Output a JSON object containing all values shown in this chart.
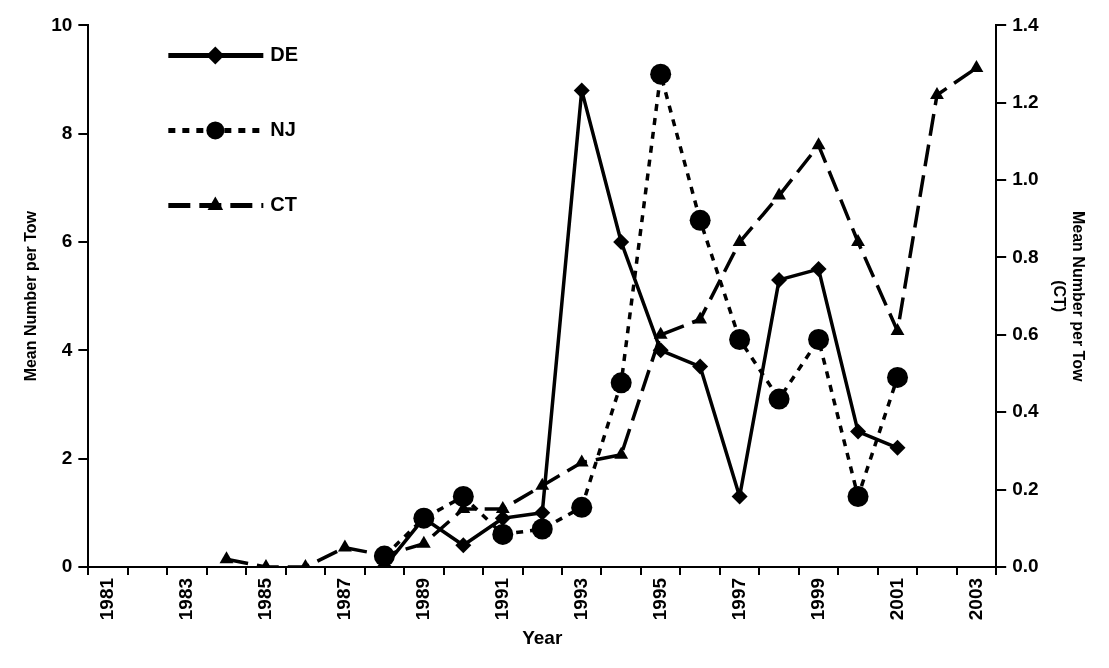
{
  "chart_data": {
    "type": "line",
    "xlabel": "Year",
    "ylabel": "Mean Number per Tow",
    "y2label": "Mean Number per Tow\n(CT)",
    "categories": [
      "1981",
      null,
      "1983",
      null,
      "1985",
      null,
      "1987",
      null,
      "1989",
      null,
      "1991",
      null,
      "1993",
      null,
      "1995",
      null,
      "1997",
      null,
      "1999",
      null,
      "2001",
      null,
      "2003"
    ],
    "series": [
      {
        "name": "DE",
        "color": "#000000",
        "marker": "diamond",
        "line_style": "solid",
        "values": [
          null,
          null,
          null,
          null,
          null,
          null,
          null,
          0,
          0.9,
          0.4,
          0.9,
          1.0,
          8.8,
          6.0,
          4.0,
          3.7,
          1.3,
          5.3,
          5.5,
          2.5,
          2.2,
          null,
          null
        ]
      },
      {
        "name": "NJ",
        "color": "#000000",
        "marker": "circle",
        "line_style": "dotted",
        "values": [
          null,
          null,
          null,
          null,
          null,
          null,
          null,
          0.2,
          0.9,
          1.3,
          0.6,
          0.7,
          1.1,
          3.4,
          9.1,
          6.4,
          4.2,
          3.1,
          4.2,
          1.3,
          3.5,
          null,
          null
        ]
      },
      {
        "name": "CT",
        "color": "#000000",
        "marker": "triangle",
        "line_style": "dashed",
        "axis": "y2",
        "values": [
          null,
          null,
          null,
          0.02,
          0,
          0,
          0.05,
          0.03,
          0.06,
          0.15,
          0.15,
          0.21,
          0.27,
          0.29,
          0.6,
          0.64,
          0.84,
          0.96,
          1.09,
          0.84,
          0.61,
          1.22,
          1.29
        ]
      }
    ],
    "ylim": [
      0,
      10
    ],
    "yticks": [
      0,
      2,
      4,
      6,
      8,
      10
    ],
    "y2lim": [
      0,
      1.4
    ],
    "y2ticks": [
      {
        "value": 0,
        "label": "0.0"
      },
      {
        "value": 0.2,
        "label": "0.2"
      },
      {
        "value": 0.4,
        "label": "0.4"
      },
      {
        "value": 0.6,
        "label": "0.6"
      },
      {
        "value": 0.8,
        "label": "0.8"
      },
      {
        "value": 1.0,
        "label": "1.0"
      },
      {
        "value": 1.2,
        "label": "1.2"
      },
      {
        "value": 1.4,
        "label": "1.4"
      }
    ],
    "grid": false,
    "legend": "top left"
  }
}
